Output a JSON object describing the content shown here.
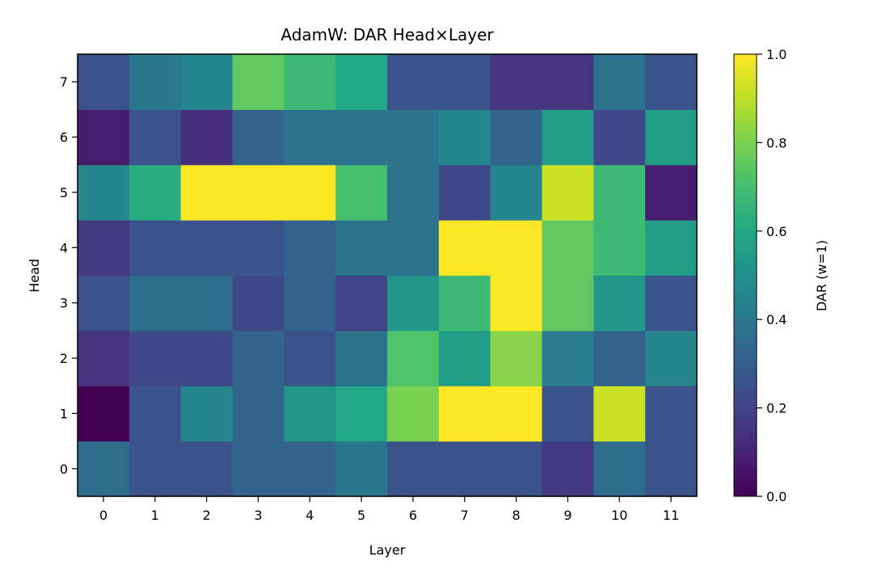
{
  "chart_data": {
    "type": "heatmap",
    "title": "AdamW: DAR Head×Layer",
    "xlabel": "Layer",
    "ylabel": "Head",
    "x_categories": [
      "0",
      "1",
      "2",
      "3",
      "4",
      "5",
      "6",
      "7",
      "8",
      "9",
      "10",
      "11"
    ],
    "y_categories": [
      "0",
      "1",
      "2",
      "3",
      "4",
      "5",
      "6",
      "7"
    ],
    "colormap": "viridis",
    "colorbar": {
      "label": "DAR (w=1)",
      "range": [
        0.0,
        1.0
      ],
      "ticks": [
        "0.0",
        "0.2",
        "0.4",
        "0.6",
        "0.8",
        "1.0"
      ]
    },
    "values": [
      [
        0.35,
        0.25,
        0.25,
        0.32,
        0.32,
        0.4,
        0.25,
        0.25,
        0.25,
        0.17,
        0.35,
        0.25
      ],
      [
        0.0,
        0.25,
        0.45,
        0.32,
        0.52,
        0.6,
        0.8,
        1.0,
        1.0,
        0.25,
        0.92,
        0.25
      ],
      [
        0.15,
        0.22,
        0.22,
        0.32,
        0.25,
        0.38,
        0.72,
        0.55,
        0.82,
        0.42,
        0.32,
        0.45
      ],
      [
        0.25,
        0.35,
        0.35,
        0.22,
        0.32,
        0.2,
        0.52,
        0.68,
        1.0,
        0.75,
        0.52,
        0.25
      ],
      [
        0.17,
        0.25,
        0.25,
        0.25,
        0.32,
        0.38,
        0.38,
        1.0,
        1.0,
        0.75,
        0.68,
        0.55
      ],
      [
        0.45,
        0.62,
        1.0,
        1.0,
        1.0,
        0.7,
        0.38,
        0.22,
        0.45,
        0.92,
        0.68,
        0.08
      ],
      [
        0.08,
        0.25,
        0.13,
        0.32,
        0.38,
        0.38,
        0.38,
        0.45,
        0.32,
        0.55,
        0.22,
        0.55
      ],
      [
        0.25,
        0.4,
        0.45,
        0.75,
        0.68,
        0.6,
        0.25,
        0.25,
        0.15,
        0.15,
        0.38,
        0.25
      ]
    ]
  }
}
